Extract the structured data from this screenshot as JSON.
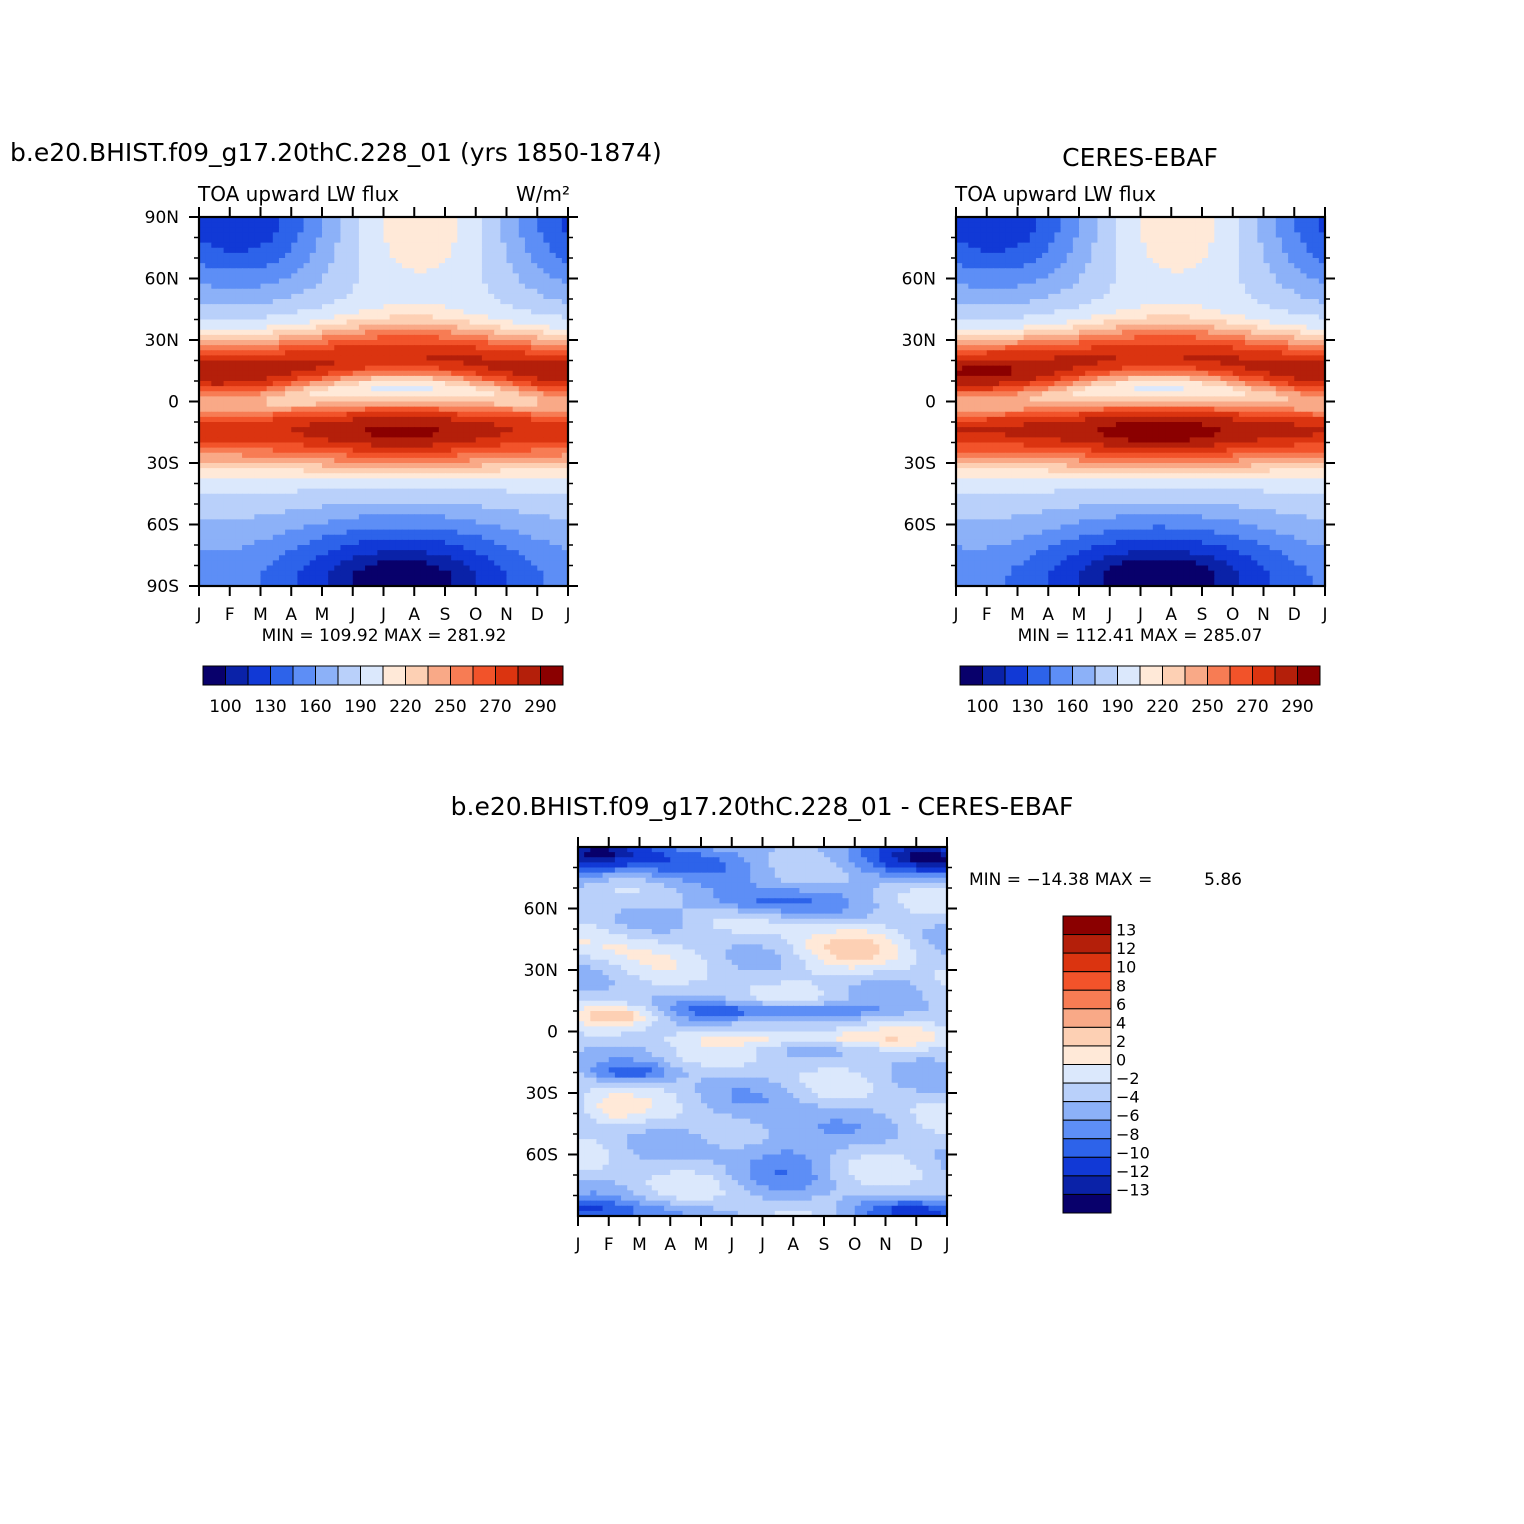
{
  "chart_data": [
    {
      "type": "heatmap",
      "title": "b.e20.BHIST.f09_g17.20thC.228_01 (yrs 1850-1874)",
      "subtitle_left": "TOA upward LW flux",
      "units": "W/m²",
      "x_ticks": [
        "J",
        "F",
        "M",
        "A",
        "M",
        "J",
        "J",
        "A",
        "S",
        "O",
        "N",
        "D",
        "J"
      ],
      "y_ticks": [
        "90N",
        "60N",
        "30N",
        "0",
        "30S",
        "60S",
        "90S"
      ],
      "ylim": [
        -90,
        90
      ],
      "stats": "MIN =  109.92  MAX =  281.92",
      "min": 109.92,
      "max": 281.92,
      "levels": [
        100,
        110,
        120,
        130,
        140,
        150,
        160,
        170,
        180,
        190,
        200,
        210,
        220,
        230,
        240,
        250,
        260,
        270,
        280,
        290
      ],
      "colorbar_labels": [
        "100",
        "130",
        "160",
        "190",
        "220",
        "250",
        "270",
        "290"
      ]
    },
    {
      "type": "heatmap",
      "title": "CERES-EBAF",
      "subtitle_left": "TOA upward LW flux",
      "x_ticks": [
        "J",
        "F",
        "M",
        "A",
        "M",
        "J",
        "J",
        "A",
        "S",
        "O",
        "N",
        "D",
        "J"
      ],
      "y_ticks": [
        "60N",
        "30N",
        "0",
        "30S",
        "60S"
      ],
      "ylim": [
        -90,
        90
      ],
      "stats": "MIN =  112.41  MAX =  285.07",
      "min": 112.41,
      "max": 285.07,
      "levels": [
        100,
        110,
        120,
        130,
        140,
        150,
        160,
        170,
        180,
        190,
        200,
        210,
        220,
        230,
        240,
        250,
        260,
        270,
        280,
        290
      ],
      "colorbar_labels": [
        "100",
        "130",
        "160",
        "190",
        "220",
        "250",
        "270",
        "290"
      ]
    },
    {
      "type": "heatmap",
      "title": "b.e20.BHIST.f09_g17.20thC.228_01 - CERES-EBAF",
      "x_ticks": [
        "J",
        "F",
        "M",
        "A",
        "M",
        "J",
        "J",
        "A",
        "S",
        "O",
        "N",
        "D",
        "J"
      ],
      "y_ticks": [
        "60N",
        "30N",
        "0",
        "30S",
        "60S"
      ],
      "ylim": [
        -90,
        90
      ],
      "stats_prefix": "MIN = −14.38  MAX =",
      "stats_value": "5.86",
      "min": -14.38,
      "max": 5.86,
      "levels": [
        -13,
        -12,
        -10,
        -8,
        -6,
        -4,
        -2,
        0,
        2,
        4,
        6,
        8,
        10,
        12,
        13
      ],
      "colorbar_labels": [
        "13",
        "12",
        "10",
        "8",
        "6",
        "4",
        "2",
        "0",
        "−2",
        "−4",
        "−6",
        "−8",
        "−10",
        "−12",
        "−13"
      ]
    }
  ],
  "palette": [
    "#08006b",
    "#0a22a8",
    "#1139d6",
    "#2d63ea",
    "#5d8ef6",
    "#8cb1f8",
    "#b9d0fa",
    "#dbe8fc",
    "#ffe9d8",
    "#fdd0b4",
    "#f9a987",
    "#f77c54",
    "#f2532a",
    "#db3410",
    "#b41f0a",
    "#8b0000"
  ],
  "diff_palette": [
    "#08006b",
    "#0a22a8",
    "#1139d6",
    "#2d63ea",
    "#5d8ef6",
    "#8cb1f8",
    "#b9d0fa",
    "#dbe8fc",
    "#ffe9d8",
    "#fdd0b4",
    "#f9a987",
    "#f77c54",
    "#f2532a",
    "#db3410",
    "#b41f0a",
    "#8b0000"
  ]
}
